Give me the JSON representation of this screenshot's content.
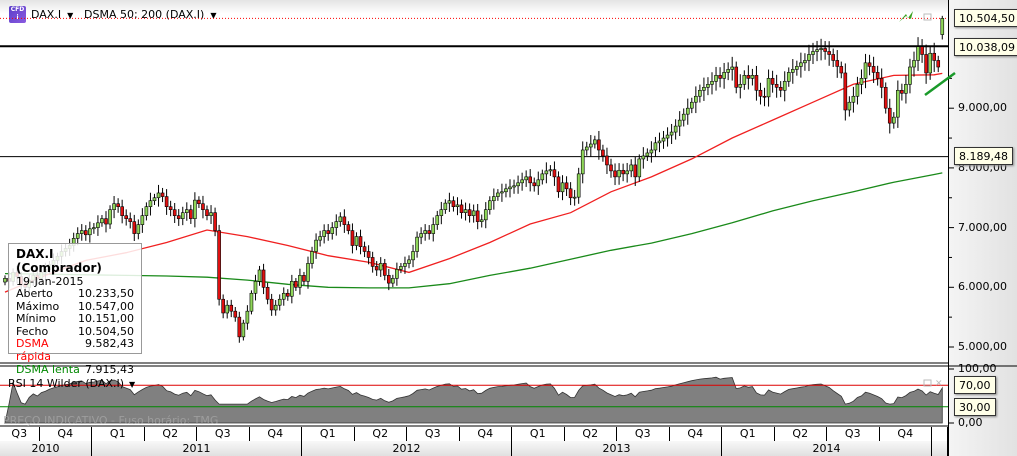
{
  "header": {
    "instrument": "DAX.I",
    "indicator": "DSMA 50; 200 (DAX.I)",
    "logo_text": "CFD i"
  },
  "tooltip": {
    "title": "DAX.I (Comprador)",
    "date": "19-Jan-2015",
    "rows": [
      {
        "label": "Aberto",
        "value": "10.233,50"
      },
      {
        "label": "Máximo",
        "value": "10.547,00"
      },
      {
        "label": "Mínimo",
        "value": "10.151,00"
      },
      {
        "label": "Fecho",
        "value": "10.504,50"
      },
      {
        "label": "DSMA rápida",
        "value": "9.582,43"
      },
      {
        "label": "DSMA lenta",
        "value": "7.915,43"
      }
    ]
  },
  "rsi": {
    "label": "RSI 14 Wilder (DAX.I)",
    "levels": [
      "70,00",
      "30,00"
    ],
    "axis": [
      "100,00",
      "0,00"
    ]
  },
  "watermark": "PREÇO INDICATIVO - Fuso horário: TMG",
  "price_tags": {
    "last": "10.504,50",
    "resistance": "10.038,09",
    "support": "8.189,48"
  },
  "price_axis": [
    "9.000,00",
    "8.000,00",
    "7.000,00",
    "6.000,00",
    "5.000,00"
  ],
  "x_axis": {
    "quarters": [
      "Q3",
      "Q4",
      "Q1",
      "Q2",
      "Q3",
      "Q4",
      "Q1",
      "Q2",
      "Q3",
      "Q4",
      "Q1",
      "Q2",
      "Q3",
      "Q4",
      "Q1",
      "Q2",
      "Q3",
      "Q4"
    ],
    "years": [
      "2010",
      "2011",
      "2012",
      "2013",
      "2014"
    ]
  },
  "colors": {
    "up": "#8fd65a",
    "down": "#e01010",
    "sma_fast": "#f02020",
    "sma_slow": "#1a8a1a",
    "last_line": "#ff0000"
  },
  "chart_data": {
    "type": "candlestick",
    "interval": "weekly",
    "ylim": [
      4800,
      10750
    ],
    "horizontal_lines": [
      10504.5,
      10038.09,
      8189.48
    ],
    "closes": [
      6150,
      6100,
      6250,
      6180,
      6050,
      6000,
      6120,
      6200,
      6150,
      6250,
      6300,
      6380,
      6450,
      6520,
      6600,
      6650,
      6700,
      6820,
      6900,
      6950,
      6880,
      6980,
      7000,
      7080,
      7150,
      7060,
      7300,
      7400,
      7350,
      7200,
      7150,
      7100,
      6900,
      7050,
      7200,
      7350,
      7450,
      7500,
      7580,
      7520,
      7350,
      7300,
      7200,
      7150,
      7250,
      7300,
      7150,
      7460,
      7400,
      7300,
      7200,
      7250,
      6950,
      5800,
      5570,
      5700,
      5600,
      5500,
      5170,
      5400,
      5600,
      5900,
      6100,
      6290,
      6000,
      5800,
      5620,
      5700,
      5800,
      5900,
      5850,
      6100,
      6000,
      6200,
      6100,
      6400,
      6600,
      6790,
      6850,
      6950,
      6900,
      7000,
      7100,
      7180,
      7050,
      6950,
      6700,
      6850,
      6680,
      6600,
      6500,
      6350,
      6290,
      6400,
      6200,
      6070,
      6150,
      6300,
      6350,
      6400,
      6460,
      6600,
      6840,
      6900,
      6950,
      6900,
      7050,
      7200,
      7300,
      7410,
      7450,
      7350,
      7380,
      7250,
      7300,
      7200,
      7280,
      7100,
      7130,
      7300,
      7450,
      7520,
      7580,
      7600,
      7650,
      7680,
      7700,
      7750,
      7800,
      7850,
      7750,
      7700,
      7800,
      7900,
      7950,
      7970,
      7850,
      7600,
      7750,
      7650,
      7500,
      7510,
      7900,
      8300,
      8350,
      8400,
      8470,
      8300,
      8200,
      8050,
      7950,
      7850,
      7960,
      7900,
      7950,
      8050,
      7850,
      8150,
      8200,
      8250,
      8300,
      8420,
      8450,
      8500,
      8550,
      8600,
      8700,
      8800,
      8900,
      9000,
      9100,
      9200,
      9300,
      9350,
      9400,
      9450,
      9550,
      9500,
      9600,
      9650,
      9690,
      9350,
      9400,
      9550,
      9500,
      9550,
      9300,
      9200,
      9190,
      9500,
      9400,
      9350,
      9300,
      9450,
      9600,
      9650,
      9700,
      9760,
      9800,
      9900,
      9950,
      9980,
      10000,
      9950,
      9900,
      9800,
      9700,
      9590,
      8970,
      9100,
      9200,
      9400,
      9500,
      9760,
      9700,
      9600,
      9500,
      9350,
      9000,
      8750,
      8850,
      9300,
      9250,
      9400,
      9690,
      9800,
      10030,
      9900,
      9590,
      9920,
      9800,
      9690,
      10504.5
    ],
    "last_candle": {
      "open": 10233.5,
      "high": 10547.0,
      "low": 10151.0,
      "close": 10504.5
    },
    "sma_fast_every_10_weeks": [
      5920,
      6200,
      6450,
      6580,
      6750,
      6960,
      6850,
      6700,
      6530,
      6420,
      6250,
      6480,
      6750,
      7060,
      7250,
      7600,
      7850,
      8150,
      8500,
      8800,
      9100,
      9400,
      9550,
      9560,
      9582.43
    ],
    "sma_slow_every_10_weeks": [
      6230,
      6220,
      6210,
      6200,
      6190,
      6170,
      6120,
      6050,
      6000,
      5990,
      5990,
      6060,
      6200,
      6320,
      6470,
      6620,
      6740,
      6900,
      7080,
      7280,
      7450,
      7600,
      7760,
      7890,
      7915.43
    ]
  }
}
